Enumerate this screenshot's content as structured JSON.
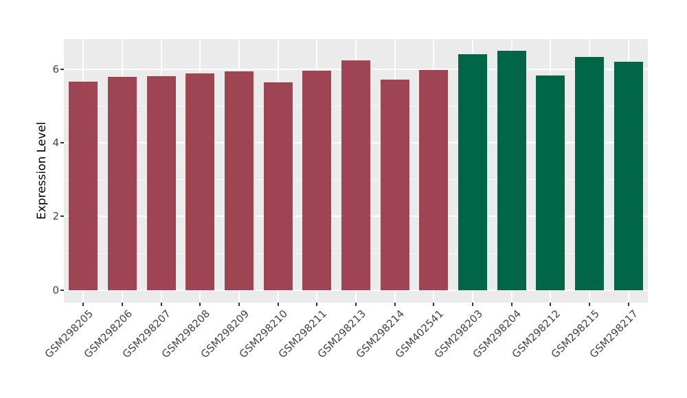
{
  "figure": {
    "background": "#FFFFFF"
  },
  "chart_data": {
    "type": "bar",
    "title": "",
    "xlabel": "",
    "ylabel": "Expression Level",
    "categories": [
      "GSM298205",
      "GSM298206",
      "GSM298207",
      "GSM298208",
      "GSM298209",
      "GSM298210",
      "GSM298211",
      "GSM298213",
      "GSM298214",
      "GSM402541",
      "GSM298203",
      "GSM298204",
      "GSM298212",
      "GSM298215",
      "GSM298217"
    ],
    "values": [
      5.66,
      5.78,
      5.81,
      5.88,
      5.93,
      5.64,
      5.96,
      6.23,
      5.71,
      5.97,
      6.4,
      6.5,
      5.83,
      6.32,
      6.19
    ],
    "bar_colors": [
      "#9E4452",
      "#9E4452",
      "#9E4452",
      "#9E4452",
      "#9E4452",
      "#9E4452",
      "#9E4452",
      "#9E4452",
      "#9E4452",
      "#9E4452",
      "#016647",
      "#016647",
      "#016647",
      "#016647",
      "#016647"
    ],
    "groups": [
      {
        "name": "group-1",
        "color": "#9E4452",
        "categories_count": 10
      },
      {
        "name": "group-2",
        "color": "#016647",
        "categories_count": 5
      }
    ],
    "ylim": [
      -0.34,
      6.81
    ],
    "yticks": [
      0,
      2,
      4,
      6
    ],
    "yticks_minor": [
      1,
      3,
      5
    ],
    "grid": true,
    "legend": "none",
    "panel_background": "#EBEBEB",
    "grid_color": "#FFFFFF",
    "tick_mark_color": "#333333",
    "axis_text_color": "#444444",
    "bar_width_fraction": 0.74
  }
}
